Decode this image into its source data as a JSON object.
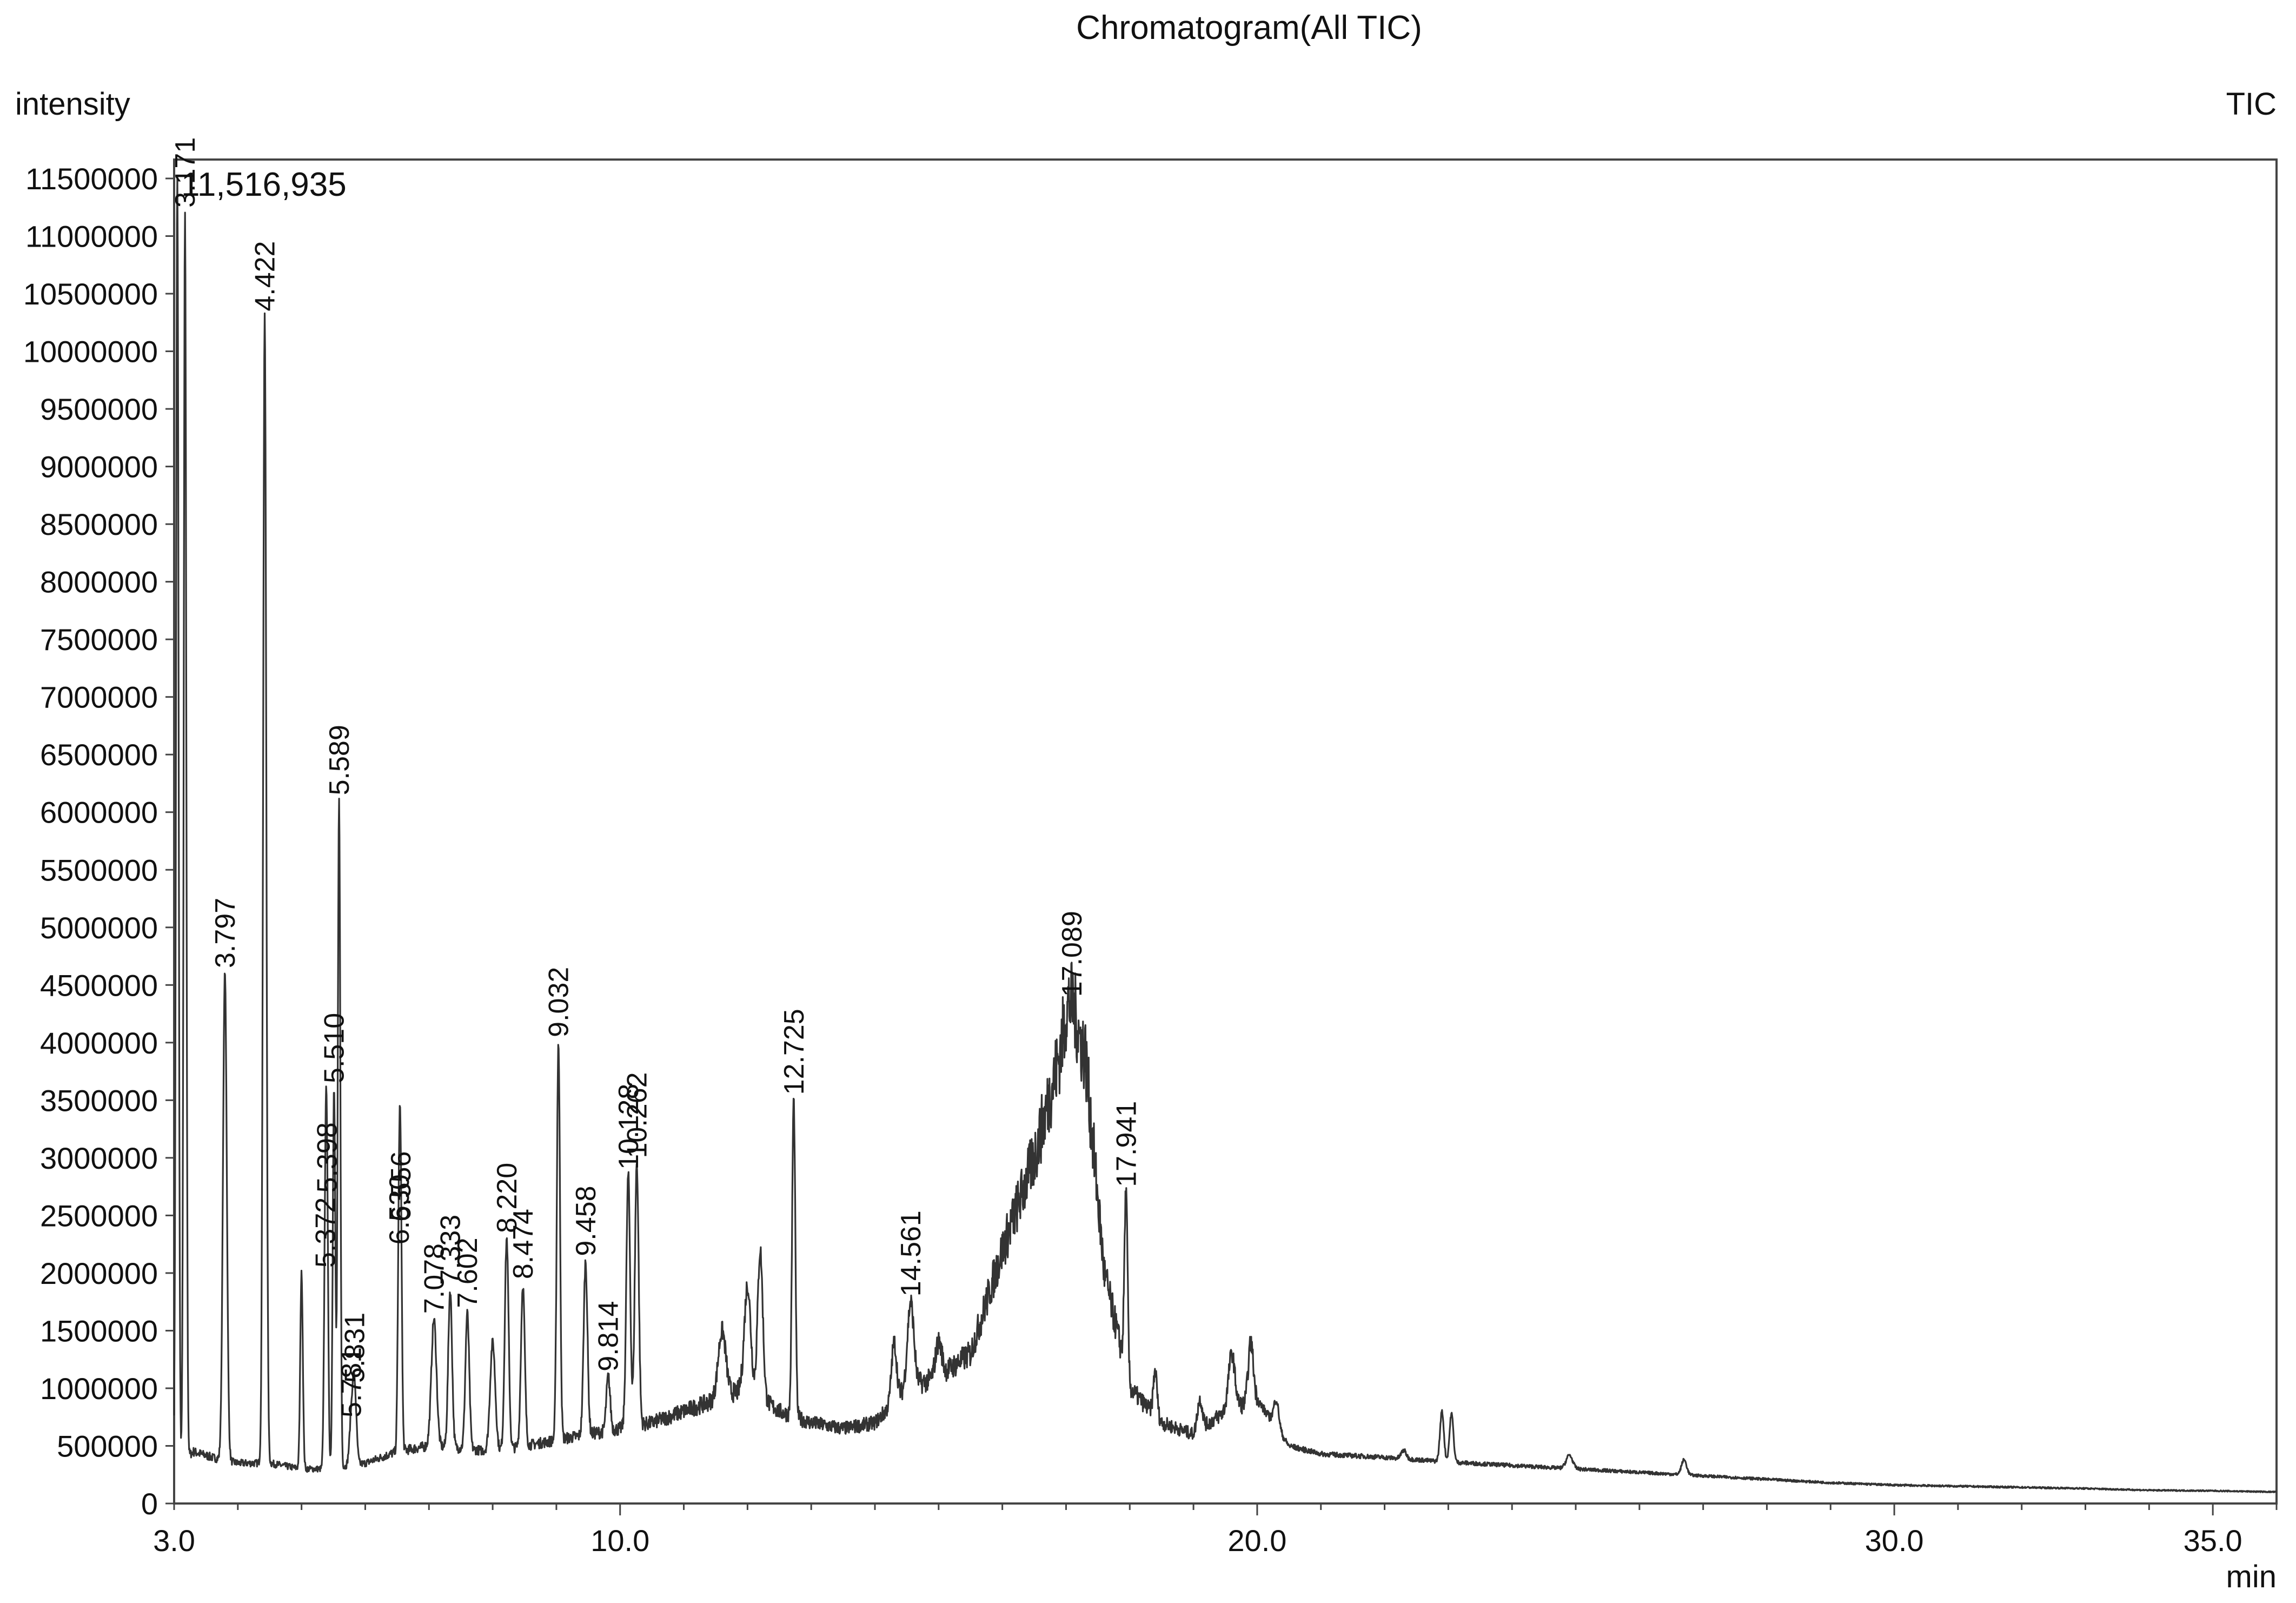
{
  "chart_data": {
    "type": "line",
    "title": "Chromatogram(All TIC)",
    "ylabel": "intensity",
    "xlabel": "min",
    "trace_label": "TIC",
    "xlim": [
      3.0,
      36.0
    ],
    "ylim": [
      0,
      11500000
    ],
    "x_ticks": [
      {
        "value": 3.0,
        "label": "3.0"
      },
      {
        "value": 10.0,
        "label": "10.0"
      },
      {
        "value": 20.0,
        "label": "20.0"
      },
      {
        "value": 30.0,
        "label": "30.0"
      },
      {
        "value": 35.0,
        "label": "35.0"
      }
    ],
    "y_ticks": [
      {
        "value": 0,
        "label": "0"
      },
      {
        "value": 500000,
        "label": "500000"
      },
      {
        "value": 1000000,
        "label": "1000000"
      },
      {
        "value": 1500000,
        "label": "1500000"
      },
      {
        "value": 2000000,
        "label": "2000000"
      },
      {
        "value": 2500000,
        "label": "2500000"
      },
      {
        "value": 3000000,
        "label": "3000000"
      },
      {
        "value": 3500000,
        "label": "3500000"
      },
      {
        "value": 4000000,
        "label": "4000000"
      },
      {
        "value": 4500000,
        "label": "4500000"
      },
      {
        "value": 5000000,
        "label": "5000000"
      },
      {
        "value": 5500000,
        "label": "5500000"
      },
      {
        "value": 6000000,
        "label": "6000000"
      },
      {
        "value": 6500000,
        "label": "6500000"
      },
      {
        "value": 7000000,
        "label": "7000000"
      },
      {
        "value": 7500000,
        "label": "7500000"
      },
      {
        "value": 8000000,
        "label": "8000000"
      },
      {
        "value": 8500000,
        "label": "8500000"
      },
      {
        "value": 9000000,
        "label": "9000000"
      },
      {
        "value": 9500000,
        "label": "9500000"
      },
      {
        "value": 10000000,
        "label": "10000000"
      },
      {
        "value": 10500000,
        "label": "10500000"
      },
      {
        "value": 11000000,
        "label": "11000000"
      },
      {
        "value": 11500000,
        "label": "11500000"
      }
    ],
    "max_intensity_label": "11,516,935",
    "baseline": [
      [
        3.0,
        300000
      ],
      [
        3.3,
        450000
      ],
      [
        3.6,
        400000
      ],
      [
        4.0,
        350000
      ],
      [
        4.5,
        350000
      ],
      [
        5.0,
        300000
      ],
      [
        5.5,
        300000
      ],
      [
        6.0,
        350000
      ],
      [
        6.5,
        450000
      ],
      [
        7.0,
        500000
      ],
      [
        7.5,
        480000
      ],
      [
        8.0,
        450000
      ],
      [
        8.5,
        500000
      ],
      [
        9.0,
        550000
      ],
      [
        9.5,
        600000
      ],
      [
        10.0,
        650000
      ],
      [
        10.5,
        700000
      ],
      [
        11.0,
        800000
      ],
      [
        11.5,
        900000
      ],
      [
        12.0,
        1000000
      ],
      [
        12.5,
        800000
      ],
      [
        13.0,
        700000
      ],
      [
        13.5,
        650000
      ],
      [
        14.0,
        700000
      ],
      [
        14.5,
        1000000
      ],
      [
        15.0,
        1100000
      ],
      [
        15.5,
        1300000
      ],
      [
        16.0,
        2200000
      ],
      [
        16.5,
        3000000
      ],
      [
        17.0,
        4100000
      ],
      [
        17.3,
        3900000
      ],
      [
        17.6,
        2000000
      ],
      [
        18.0,
        1000000
      ],
      [
        18.5,
        700000
      ],
      [
        19.0,
        600000
      ],
      [
        19.5,
        800000
      ],
      [
        20.0,
        900000
      ],
      [
        20.5,
        500000
      ],
      [
        21.0,
        430000
      ],
      [
        22.0,
        400000
      ],
      [
        23.0,
        360000
      ],
      [
        24.0,
        330000
      ],
      [
        25.0,
        300000
      ],
      [
        26.0,
        270000
      ],
      [
        27.0,
        240000
      ],
      [
        28.0,
        210000
      ],
      [
        29.0,
        180000
      ],
      [
        30.0,
        160000
      ],
      [
        31.0,
        150000
      ],
      [
        32.0,
        140000
      ],
      [
        33.0,
        130000
      ],
      [
        34.0,
        115000
      ],
      [
        35.0,
        110000
      ],
      [
        36.0,
        100000
      ]
    ],
    "peaks": [
      {
        "x": 3.05,
        "y": 11516935,
        "w": 0.02
      },
      {
        "x": 3.171,
        "y": 11200000,
        "label": "3.171",
        "w": 0.02
      },
      {
        "x": 3.797,
        "y": 4600000,
        "label": "3.797",
        "w": 0.03
      },
      {
        "x": 4.422,
        "y": 10300000,
        "label": "4.422",
        "w": 0.025
      },
      {
        "x": 5.0,
        "y": 2000000,
        "w": 0.02
      },
      {
        "x": 5.372,
        "y": 2000000,
        "label": "5.372",
        "w": 0.02
      },
      {
        "x": 5.398,
        "y": 2650000,
        "label": "5.398",
        "w": 0.02
      },
      {
        "x": 5.51,
        "y": 3600000,
        "label": "5.510",
        "w": 0.02
      },
      {
        "x": 5.589,
        "y": 6100000,
        "label": "5.589",
        "w": 0.02
      },
      {
        "x": 5.781,
        "y": 700000,
        "label": "5.781",
        "w": 0.03
      },
      {
        "x": 5.831,
        "y": 1000000,
        "label": "5.831",
        "w": 0.03
      },
      {
        "x": 6.53,
        "y": 2200000,
        "label": "6.530",
        "w": 0.02
      },
      {
        "x": 6.556,
        "y": 2400000,
        "label": "6.556",
        "w": 0.02
      },
      {
        "x": 7.078,
        "y": 1600000,
        "label": "7.078",
        "w": 0.04
      },
      {
        "x": 7.333,
        "y": 1850000,
        "label": "7.333",
        "w": 0.03
      },
      {
        "x": 7.602,
        "y": 1650000,
        "label": "7.602",
        "w": 0.03
      },
      {
        "x": 8.0,
        "y": 1400000,
        "w": 0.04
      },
      {
        "x": 8.22,
        "y": 2300000,
        "label": "8.220",
        "w": 0.03
      },
      {
        "x": 8.474,
        "y": 1900000,
        "label": "8.474",
        "w": 0.03
      },
      {
        "x": 9.032,
        "y": 4000000,
        "label": "9.032",
        "w": 0.025
      },
      {
        "x": 9.458,
        "y": 2100000,
        "label": "9.458",
        "w": 0.03
      },
      {
        "x": 9.814,
        "y": 1100000,
        "label": "9.814",
        "w": 0.03
      },
      {
        "x": 10.128,
        "y": 2850000,
        "label": "10.128",
        "w": 0.03
      },
      {
        "x": 10.262,
        "y": 2950000,
        "label": "10.262",
        "w": 0.03
      },
      {
        "x": 11.6,
        "y": 1500000,
        "w": 0.06
      },
      {
        "x": 12.0,
        "y": 1900000,
        "w": 0.05
      },
      {
        "x": 12.2,
        "y": 2200000,
        "w": 0.04
      },
      {
        "x": 12.725,
        "y": 3500000,
        "label": "12.725",
        "w": 0.025
      },
      {
        "x": 14.3,
        "y": 1400000,
        "w": 0.04
      },
      {
        "x": 14.561,
        "y": 1750000,
        "label": "14.561",
        "w": 0.05
      },
      {
        "x": 15.0,
        "y": 1400000,
        "w": 0.05
      },
      {
        "x": 17.089,
        "y": 4350000,
        "label": "17.089",
        "w": 0.08
      },
      {
        "x": 17.7,
        "y": 1300000,
        "w": 0.03
      },
      {
        "x": 17.941,
        "y": 2700000,
        "label": "17.941",
        "w": 0.025
      },
      {
        "x": 18.4,
        "y": 1150000,
        "w": 0.03
      },
      {
        "x": 19.1,
        "y": 900000,
        "w": 0.04
      },
      {
        "x": 19.6,
        "y": 1300000,
        "w": 0.05
      },
      {
        "x": 19.9,
        "y": 1400000,
        "w": 0.04
      },
      {
        "x": 20.3,
        "y": 900000,
        "w": 0.04
      },
      {
        "x": 22.3,
        "y": 460000,
        "w": 0.04
      },
      {
        "x": 22.9,
        "y": 800000,
        "w": 0.03
      },
      {
        "x": 23.05,
        "y": 780000,
        "w": 0.03
      },
      {
        "x": 24.9,
        "y": 420000,
        "w": 0.05
      },
      {
        "x": 26.7,
        "y": 380000,
        "w": 0.04
      }
    ]
  }
}
